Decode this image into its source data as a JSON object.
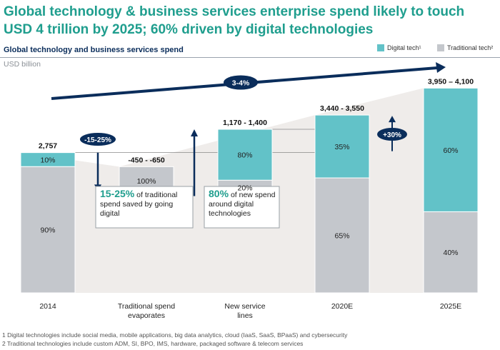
{
  "title_line1": "Global technology & business services enterprise spend likely to touch",
  "title_line2": "USD 4 trillion by 2025; 60% driven by digital technologies",
  "subtitle": "Global technology and business services spend",
  "unit": "USD billion",
  "legend": {
    "digital": "Digital tech¹",
    "traditional": "Traditional tech²"
  },
  "colors": {
    "digital": "#62c2c8",
    "traditional": "#c4c7cc",
    "navy": "#0a2d5b",
    "title": "#1f9e8e",
    "background_shape": "#efecea"
  },
  "chart_data": {
    "type": "bar",
    "title": "Global technology and business services spend",
    "ylabel": "USD billion",
    "categories": [
      "2014",
      "Traditional spend evaporates",
      "New service lines",
      "2020E",
      "2025E"
    ],
    "totals": [
      "2,757",
      "-450 - -650",
      "1,170 - 1,400",
      "3,440 - 3,550",
      "3,950 – 4,100"
    ],
    "ylim": [
      0,
      4100
    ],
    "series": [
      {
        "name": "Digital tech¹",
        "values": [
          275,
          0,
          1000,
          1235,
          2430
        ],
        "labels": [
          "10%",
          "",
          "80%",
          "35%",
          "60%"
        ]
      },
      {
        "name": "Traditional tech²",
        "values": [
          2482,
          550,
          285,
          2260,
          1595
        ],
        "labels": [
          "90%",
          "100%",
          "20%",
          "65%",
          "40%"
        ]
      }
    ],
    "bar_layout": [
      {
        "base": 0,
        "traditional_bottom": 0
      },
      {
        "base": 1930,
        "traditional_bottom": 1930
      },
      {
        "base": 1930,
        "traditional_bottom": 1930
      },
      {
        "base": 0,
        "traditional_bottom": 0
      },
      {
        "base": 0,
        "traditional_bottom": 0
      }
    ],
    "annotations": {
      "growth_arrow": "3-4%",
      "reduction_pill": "-15-25%",
      "increase_pill": "+30%",
      "callout_saved": {
        "highlight": "15-25%",
        "text": " of traditional spend saved by going digital"
      },
      "callout_new": {
        "highlight": "80%",
        "text": " of new spend around digital technologies"
      }
    },
    "grid": false,
    "legend_position": "top-right"
  },
  "footnotes": [
    "1 Digital technologies include social media, mobile applications, big data  analytics, cloud (IaaS, SaaS, BPaaS) and cybersecurity",
    "2 Traditional technologies include custom ADM, SI, BPO, IMS, hardware, packaged software & telecom services"
  ]
}
